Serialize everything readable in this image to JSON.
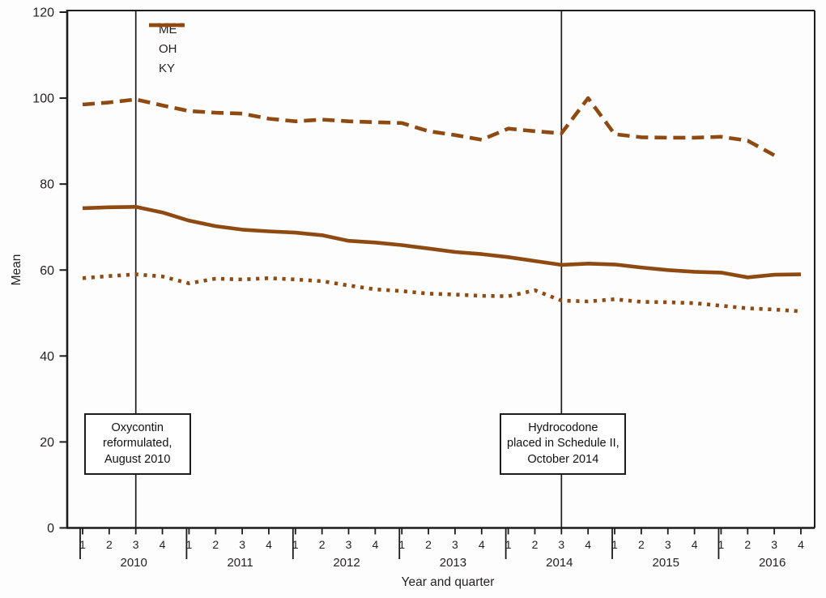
{
  "figure": {
    "ylabel": "Mean",
    "xlabel": "Year and quarter"
  },
  "legend": {
    "items": [
      {
        "label": "ME",
        "style": "dashed"
      },
      {
        "label": "OH",
        "style": "solid"
      },
      {
        "label": "KY",
        "style": "dotted"
      }
    ]
  },
  "annotations": [
    {
      "name": "oxycontin",
      "lines": [
        "Oxycontin",
        "reformulated,",
        "August 2010"
      ],
      "quarter_index": 2
    },
    {
      "name": "hydrocodone",
      "lines": [
        "Hydrocodone",
        "placed in Schedule II,",
        "October 2014"
      ],
      "quarter_index": 18
    }
  ],
  "chart_data": {
    "type": "line",
    "title": "",
    "xlabel": "Year and quarter",
    "ylabel": "Mean",
    "ylim": [
      0,
      120
    ],
    "yticks": [
      0,
      20,
      40,
      60,
      80,
      100,
      120
    ],
    "years": [
      "2010",
      "2011",
      "2012",
      "2013",
      "2014",
      "2015",
      "2016"
    ],
    "quarter_labels": [
      "1",
      "2",
      "3",
      "4"
    ],
    "grid": false,
    "legend_position": "top-left-inside",
    "frame": "full-box",
    "line_color": "#8f4a12",
    "categories": [
      "2010 Q1",
      "2010 Q2",
      "2010 Q3",
      "2010 Q4",
      "2011 Q1",
      "2011 Q2",
      "2011 Q3",
      "2011 Q4",
      "2012 Q1",
      "2012 Q2",
      "2012 Q3",
      "2012 Q4",
      "2013 Q1",
      "2013 Q2",
      "2013 Q3",
      "2013 Q4",
      "2014 Q1",
      "2014 Q2",
      "2014 Q3",
      "2014 Q4",
      "2015 Q1",
      "2015 Q2",
      "2015 Q3",
      "2015 Q4",
      "2016 Q1",
      "2016 Q2",
      "2016 Q3",
      "2016 Q4"
    ],
    "series": [
      {
        "name": "ME",
        "style": "dashed",
        "values": [
          98.5,
          99.0,
          99.7,
          98.3,
          97.0,
          96.6,
          96.4,
          95.2,
          94.6,
          95.0,
          94.6,
          94.4,
          94.2,
          92.3,
          91.4,
          90.3,
          92.9,
          92.3,
          91.8,
          100.0,
          91.6,
          90.9,
          90.8,
          90.8,
          91.0,
          90.1,
          86.7,
          null
        ]
      },
      {
        "name": "OH",
        "style": "solid",
        "values": [
          74.4,
          74.6,
          74.7,
          73.4,
          71.5,
          70.2,
          69.4,
          69.0,
          68.7,
          68.1,
          66.8,
          66.4,
          65.8,
          65.0,
          64.2,
          63.7,
          63.0,
          62.1,
          61.2,
          61.5,
          61.3,
          60.6,
          60.0,
          59.6,
          59.4,
          58.3,
          58.9,
          59.0
        ]
      },
      {
        "name": "KY",
        "style": "dotted",
        "values": [
          58.1,
          58.6,
          59.0,
          58.5,
          56.9,
          58.0,
          57.8,
          58.1,
          57.8,
          57.4,
          56.4,
          55.5,
          55.1,
          54.5,
          54.3,
          54.0,
          53.9,
          55.3,
          52.9,
          52.7,
          53.2,
          52.6,
          52.5,
          52.3,
          51.7,
          51.1,
          50.8,
          50.4
        ]
      }
    ],
    "reference_lines": [
      {
        "at_category": "2010 Q3",
        "quarter_index": 2,
        "label": "Oxycontin reformulated, August 2010"
      },
      {
        "at_category": "2014 Q3",
        "quarter_index": 18,
        "label": "Hydrocodone placed in Schedule II, October 2014"
      }
    ]
  }
}
